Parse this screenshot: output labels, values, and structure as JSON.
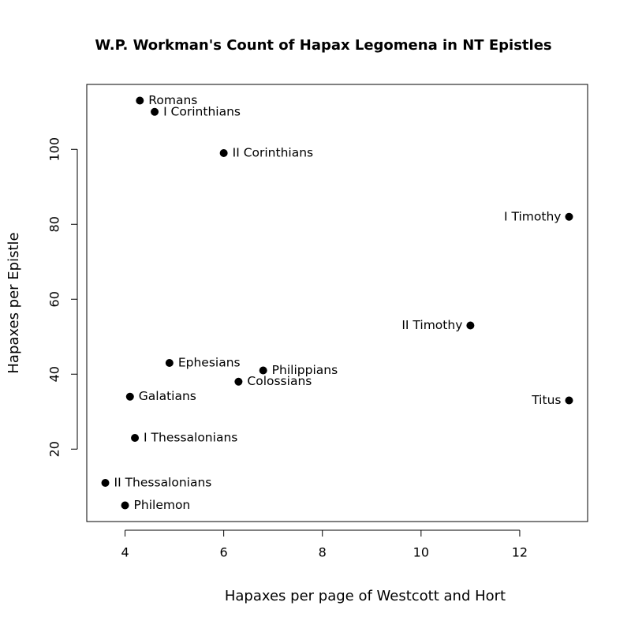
{
  "chart_data": {
    "type": "scatter",
    "title": "W.P. Workman's Count of Hapax Legomena in NT Epistles",
    "x_label": "Hapaxes per page of Westcott and Hort",
    "y_label": "Hapaxes per Epistle",
    "labels": [
      "Romans",
      "I Corinthians",
      "II Corinthians",
      "I Timothy",
      "II Timothy",
      "Titus",
      "Ephesians",
      "Philippians",
      "Colossians",
      "Galatians",
      "I Thessalonians",
      "II Thessalonians",
      "Philemon"
    ],
    "x": [
      4.3,
      4.6,
      6.0,
      13.0,
      11.0,
      13.0,
      4.9,
      6.8,
      6.3,
      4.1,
      4.2,
      3.6,
      4.0
    ],
    "values": [
      113,
      110,
      99,
      82,
      53,
      33,
      43,
      41,
      38,
      34,
      23,
      11,
      5
    ],
    "color": "#000000",
    "xlim": [
      3.224,
      13.376
    ],
    "ylim": [
      0.68,
      117.32
    ],
    "xticks": [
      4,
      6,
      8,
      10,
      12
    ],
    "yticks": [
      20,
      40,
      60,
      80,
      100
    ],
    "grid": false
  }
}
